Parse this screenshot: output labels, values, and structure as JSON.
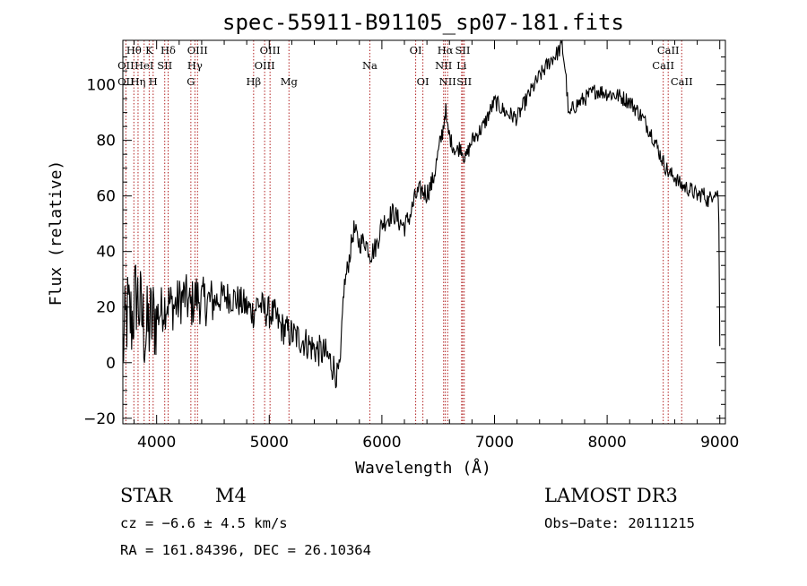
{
  "chart_data": {
    "type": "line",
    "title": "spec-55911-B91105_sp07-181.fits",
    "xlabel": "Wavelength (Å)",
    "ylabel": "Flux (relative)",
    "xlim": [
      3700,
      9050
    ],
    "ylim": [
      -22,
      116
    ],
    "xticks": [
      4000,
      5000,
      6000,
      7000,
      8000,
      9000
    ],
    "yticks": [
      -20,
      0,
      20,
      40,
      60,
      80,
      100
    ],
    "grid": false,
    "series": [
      {
        "x": [
          3700,
          3740,
          3780,
          3820,
          3860,
          3900,
          3940,
          3980,
          4020,
          4060,
          4100,
          4150,
          4200,
          4250,
          4300,
          4350,
          4400,
          4500,
          4600,
          4700,
          4800,
          4860,
          4900,
          4950,
          5000,
          5050,
          5100,
          5170,
          5250,
          5300,
          5400,
          5500,
          5550,
          5600,
          5630,
          5660,
          5700,
          5750,
          5800,
          5850,
          5900,
          5950,
          6000,
          6050,
          6100,
          6150,
          6200,
          6250,
          6300,
          6350,
          6400,
          6450,
          6500,
          6550,
          6563,
          6580,
          6620,
          6660,
          6700,
          6740,
          6800,
          6900,
          7000,
          7100,
          7200,
          7300,
          7400,
          7500,
          7550,
          7600,
          7630,
          7660,
          7700,
          7800,
          7900,
          8000,
          8100,
          8200,
          8300,
          8400,
          8500,
          8550,
          8600,
          8650,
          8700,
          8750,
          8800,
          8850,
          8900,
          8950,
          8990,
          9000
        ],
        "y": [
          5,
          18,
          15,
          25,
          18,
          10,
          14,
          16,
          18,
          20,
          22,
          20,
          22,
          24,
          20,
          24,
          22,
          22,
          24,
          23,
          20,
          18,
          22,
          19,
          18,
          17,
          13,
          11,
          9,
          8,
          5,
          3,
          0,
          -4,
          -2,
          26,
          35,
          48,
          43,
          44,
          39,
          42,
          50,
          52,
          54,
          51,
          49,
          53,
          60,
          62,
          61,
          65,
          75,
          86,
          92,
          84,
          79,
          76,
          78,
          73,
          80,
          85,
          94,
          90,
          88,
          96,
          103,
          109,
          111,
          114,
          105,
          88,
          92,
          95,
          98,
          97,
          96,
          94,
          89,
          82,
          72,
          68,
          67,
          64,
          63,
          62,
          60,
          61,
          58,
          62,
          60,
          6
        ]
      }
    ],
    "spectral_lines": [
      {
        "label": "Hθ",
        "x": 3798,
        "row": 0
      },
      {
        "label": "OII",
        "x": 3727,
        "row": 1
      },
      {
        "label": "OII",
        "x": 3727,
        "row": 2
      },
      {
        "label": "Hη",
        "x": 3835,
        "row": 2
      },
      {
        "label": "HeI",
        "x": 3889,
        "row": 1
      },
      {
        "label": "K",
        "x": 3934,
        "row": 0
      },
      {
        "label": "H",
        "x": 3969,
        "row": 2
      },
      {
        "label": "SII",
        "x": 4072,
        "row": 1
      },
      {
        "label": "Hδ",
        "x": 4102,
        "row": 0
      },
      {
        "label": "OIII",
        "x": 4363,
        "row": 0
      },
      {
        "label": "Hγ",
        "x": 4340,
        "row": 1
      },
      {
        "label": "G",
        "x": 4304,
        "row": 2
      },
      {
        "label": "OIII",
        "x": 5007,
        "row": 0
      },
      {
        "label": "OIII",
        "x": 4959,
        "row": 1
      },
      {
        "label": "Hβ",
        "x": 4861,
        "row": 2
      },
      {
        "label": "Mg",
        "x": 5175,
        "row": 2
      },
      {
        "label": "Na",
        "x": 5893,
        "row": 1
      },
      {
        "label": "OI",
        "x": 6300,
        "row": 0
      },
      {
        "label": "OI",
        "x": 6364,
        "row": 2
      },
      {
        "label": "Hα",
        "x": 6563,
        "row": 0
      },
      {
        "label": "NII",
        "x": 6548,
        "row": 1
      },
      {
        "label": "NII",
        "x": 6584,
        "row": 2
      },
      {
        "label": "SII",
        "x": 6717,
        "row": 0
      },
      {
        "label": "Li",
        "x": 6708,
        "row": 1
      },
      {
        "label": "SII",
        "x": 6731,
        "row": 2
      },
      {
        "label": "CaII",
        "x": 8542,
        "row": 0
      },
      {
        "label": "CaII",
        "x": 8498,
        "row": 1
      },
      {
        "label": "CaII",
        "x": 8662,
        "row": 2
      }
    ]
  },
  "info": {
    "class_label": "STAR",
    "subclass": "M4",
    "survey": "LAMOST DR3",
    "cz": "cz = −6.6 ± 4.5 km/s",
    "obs_date": "Obs−Date: 20111215",
    "coords": "RA = 161.84396, DEC =  26.10364"
  }
}
